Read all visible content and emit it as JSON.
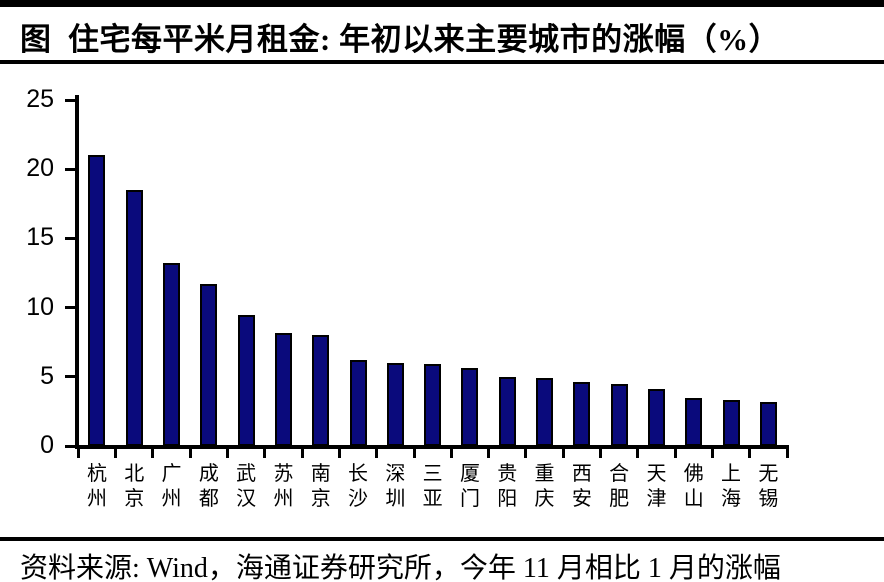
{
  "title": "图  住宅每平米月租金: 年初以来主要城市的涨幅（%）",
  "source": "资料来源: Wind，海通证券研究所，今年 11 月相比 1 月的涨幅",
  "colors": {
    "bar_fill": "#0a0a7c",
    "bar_border": "#000000",
    "axis": "#000000"
  },
  "chart_data": {
    "type": "bar",
    "title": "住宅每平米月租金: 年初以来主要城市的涨幅（%）",
    "categories": [
      "杭州",
      "北京",
      "广州",
      "成都",
      "武汉",
      "苏州",
      "南京",
      "长沙",
      "深圳",
      "三亚",
      "厦门",
      "贵阳",
      "重庆",
      "西安",
      "合肥",
      "天津",
      "佛山",
      "上海",
      "无锡"
    ],
    "values": [
      21.0,
      18.5,
      13.2,
      11.7,
      9.5,
      8.2,
      8.0,
      6.2,
      6.0,
      5.9,
      5.6,
      5.0,
      4.9,
      4.6,
      4.5,
      4.1,
      3.5,
      3.3,
      3.2
    ],
    "xlabel": "",
    "ylabel": "",
    "ylim": [
      0,
      25
    ],
    "yticks": [
      0,
      5,
      10,
      15,
      20,
      25
    ],
    "grid": false,
    "legend": false
  }
}
